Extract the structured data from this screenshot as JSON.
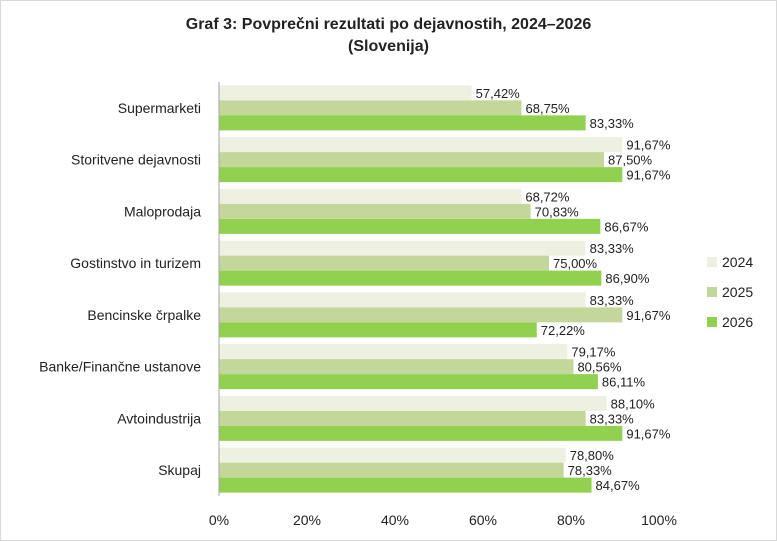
{
  "chart_data": {
    "type": "bar",
    "orientation": "horizontal",
    "title_line1": "Graf 3: Povprečni rezultati po dejavnostih, 2024–2026",
    "title_line2": "(Slovenija)",
    "categories": [
      "Supermarketi",
      "Storitvene dejavnosti",
      "Maloprodaja",
      "Gostinstvo in turizem",
      "Bencinske črpalke",
      "Banke/Finančne ustanove",
      "Avtoindustrija",
      "Skupaj"
    ],
    "series": [
      {
        "name": "2024",
        "color": "#eef1e1",
        "values": [
          57.42,
          91.67,
          68.72,
          83.33,
          83.33,
          79.17,
          88.1,
          78.8
        ],
        "labels": [
          "57,42%",
          "91,67%",
          "68,72%",
          "83,33%",
          "83,33%",
          "79,17%",
          "88,10%",
          "78,80%"
        ]
      },
      {
        "name": "2025",
        "color": "#c4d79b",
        "values": [
          68.75,
          87.5,
          70.83,
          75.0,
          91.67,
          80.56,
          83.33,
          78.33
        ],
        "labels": [
          "68,75%",
          "87,50%",
          "70,83%",
          "75,00%",
          "91,67%",
          "80,56%",
          "83,33%",
          "78,33%"
        ]
      },
      {
        "name": "2026",
        "color": "#92d050",
        "values": [
          83.33,
          91.67,
          86.67,
          86.9,
          72.22,
          86.11,
          91.67,
          84.67
        ],
        "labels": [
          "83,33%",
          "91,67%",
          "86,67%",
          "86,90%",
          "72,22%",
          "86,11%",
          "91,67%",
          "84,67%"
        ]
      }
    ],
    "xlim": [
      0,
      100
    ],
    "x_ticks": [
      "0%",
      "20%",
      "40%",
      "60%",
      "80%",
      "100%"
    ],
    "legend_position": "right",
    "grid": false
  }
}
